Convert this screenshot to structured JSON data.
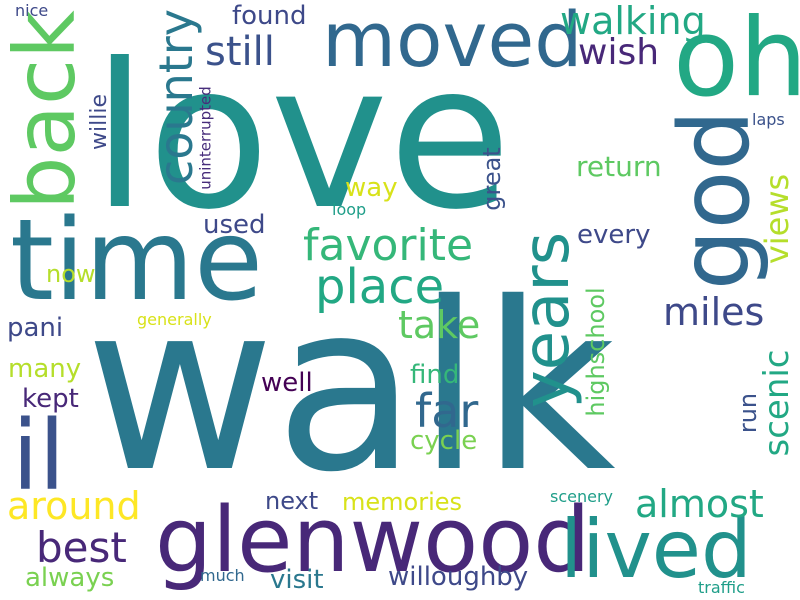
{
  "cloud": {
    "words": [
      {
        "text": "love",
        "color": "#21918c"
      },
      {
        "text": "walk",
        "color": "#2a788e"
      },
      {
        "text": "time",
        "color": "#2a788e"
      },
      {
        "text": "moved",
        "color": "#31688e"
      },
      {
        "text": "oh",
        "color": "#22a884"
      },
      {
        "text": "god",
        "color": "#31688e"
      },
      {
        "text": "back",
        "color": "#5ec962"
      },
      {
        "text": "il",
        "color": "#3b528b"
      },
      {
        "text": "glenwood",
        "color": "#482878"
      },
      {
        "text": "lived",
        "color": "#21918c"
      },
      {
        "text": "years",
        "color": "#21918c"
      },
      {
        "text": "country",
        "color": "#2a788e"
      },
      {
        "text": "favorite",
        "color": "#35b779"
      },
      {
        "text": "place",
        "color": "#22a884"
      },
      {
        "text": "still",
        "color": "#3b528b"
      },
      {
        "text": "walking",
        "color": "#22a884"
      },
      {
        "text": "wish",
        "color": "#482878"
      },
      {
        "text": "found",
        "color": "#3e4989"
      },
      {
        "text": "take",
        "color": "#5ec962"
      },
      {
        "text": "far",
        "color": "#31688e"
      },
      {
        "text": "best",
        "color": "#482878"
      },
      {
        "text": "around",
        "color": "#fde725"
      },
      {
        "text": "almost",
        "color": "#22a884"
      },
      {
        "text": "scenic",
        "color": "#22a884"
      },
      {
        "text": "views",
        "color": "#b5de2b"
      },
      {
        "text": "miles",
        "color": "#3e4989"
      },
      {
        "text": "every",
        "color": "#3e4989"
      },
      {
        "text": "return",
        "color": "#5ec962"
      },
      {
        "text": "highschool",
        "color": "#5ec962"
      },
      {
        "text": "great",
        "color": "#3b528b"
      },
      {
        "text": "way",
        "color": "#d8e219"
      },
      {
        "text": "used",
        "color": "#3e4989"
      },
      {
        "text": "now",
        "color": "#b5de2b"
      },
      {
        "text": "pani",
        "color": "#3e4989"
      },
      {
        "text": "many",
        "color": "#b5de2b"
      },
      {
        "text": "kept",
        "color": "#482878"
      },
      {
        "text": "well",
        "color": "#440154"
      },
      {
        "text": "find",
        "color": "#35b779"
      },
      {
        "text": "cycle",
        "color": "#7ad151"
      },
      {
        "text": "run",
        "color": "#3b528b"
      },
      {
        "text": "next",
        "color": "#3e4989"
      },
      {
        "text": "memories",
        "color": "#d8e219"
      },
      {
        "text": "always",
        "color": "#7ad151"
      },
      {
        "text": "visit",
        "color": "#2a788e"
      },
      {
        "text": "willoughby",
        "color": "#3e4989"
      },
      {
        "text": "much",
        "color": "#31688e"
      },
      {
        "text": "traffic",
        "color": "#1f9e89"
      },
      {
        "text": "scenery",
        "color": "#1f9e89"
      },
      {
        "text": "laps",
        "color": "#3b528b"
      },
      {
        "text": "loop",
        "color": "#1f9e89"
      },
      {
        "text": "generally",
        "color": "#d8e219"
      },
      {
        "text": "uninterrupted",
        "color": "#472d7b"
      },
      {
        "text": "willie",
        "color": "#3e4989"
      },
      {
        "text": "nice",
        "color": "#3e4989"
      }
    ]
  }
}
